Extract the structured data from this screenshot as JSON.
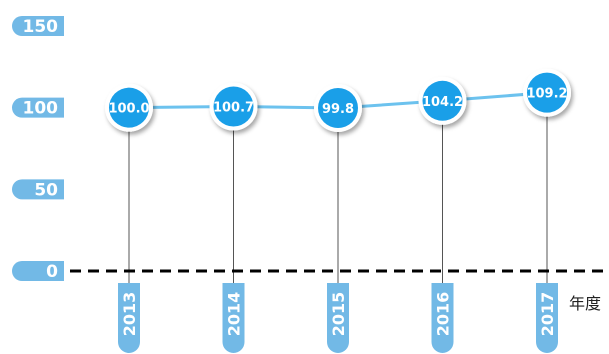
{
  "chart_data": {
    "type": "line",
    "categories": [
      "2013",
      "2014",
      "2015",
      "2016",
      "2017"
    ],
    "series": [
      {
        "values": [
          100.0,
          100.7,
          99.8,
          104.2,
          109.2
        ]
      }
    ],
    "data_labels": [
      "100.0",
      "100.7",
      "99.8",
      "104.2",
      "109.2"
    ],
    "yticks": [
      "0",
      "50",
      "100",
      "150"
    ],
    "ylim": [
      0,
      150
    ],
    "xlabel": "年度",
    "ylabel": "",
    "title": "",
    "grid": false,
    "legend": "none",
    "colors": {
      "accent": "#1a9fe8",
      "line": "#6cc2ee",
      "pill": "#72b9e6",
      "baseline": "#000000",
      "drop_line": "#555555"
    }
  }
}
